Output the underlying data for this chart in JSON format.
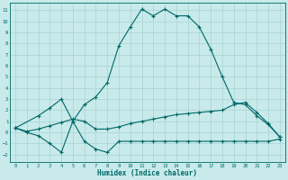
{
  "background_color": "#c8eaea",
  "grid_color": "#a8d4d4",
  "line_color": "#006868",
  "xlabel": "Humidex (Indice chaleur)",
  "xlim": [
    -0.5,
    23.5
  ],
  "ylim": [
    -2.7,
    11.7
  ],
  "xticks": [
    0,
    1,
    2,
    3,
    4,
    5,
    6,
    7,
    8,
    9,
    10,
    11,
    12,
    13,
    14,
    15,
    16,
    17,
    18,
    19,
    20,
    21,
    22,
    23
  ],
  "yticks": [
    -2,
    -1,
    0,
    1,
    2,
    3,
    4,
    5,
    6,
    7,
    8,
    9,
    10,
    11
  ],
  "curve_peak_x": [
    0,
    2,
    3,
    4,
    5,
    6,
    7,
    8,
    9,
    10,
    11,
    12,
    13,
    14,
    15,
    16,
    17,
    18,
    19,
    20,
    21,
    22,
    23
  ],
  "curve_peak_y": [
    0.4,
    1.5,
    2.2,
    3.0,
    1.0,
    2.5,
    3.2,
    4.5,
    7.8,
    9.5,
    11.1,
    10.5,
    11.1,
    10.5,
    10.5,
    9.5,
    7.5,
    5.0,
    2.7,
    2.5,
    1.5,
    0.7,
    -0.4
  ],
  "curve_mid_x": [
    0,
    1,
    2,
    3,
    4,
    5,
    6,
    7,
    8,
    9,
    10,
    11,
    12,
    13,
    14,
    15,
    16,
    17,
    18,
    19,
    20,
    21,
    22,
    23
  ],
  "curve_mid_y": [
    0.4,
    0.1,
    0.3,
    0.6,
    0.9,
    1.2,
    1.0,
    0.3,
    0.3,
    0.5,
    0.8,
    1.0,
    1.2,
    1.4,
    1.6,
    1.7,
    1.8,
    1.9,
    2.0,
    2.5,
    2.7,
    1.8,
    0.8,
    -0.4
  ],
  "curve_low_x": [
    0,
    1,
    2,
    3,
    4,
    5,
    6,
    7,
    8,
    9,
    10,
    11,
    12,
    13,
    14,
    15,
    16,
    17,
    18,
    19,
    20,
    21,
    22,
    23
  ],
  "curve_low_y": [
    0.4,
    0.0,
    -0.3,
    -1.0,
    -1.8,
    1.0,
    -0.8,
    -1.5,
    -1.8,
    -0.8,
    -0.8,
    -0.8,
    -0.8,
    -0.8,
    -0.8,
    -0.8,
    -0.8,
    -0.8,
    -0.8,
    -0.8,
    -0.8,
    -0.8,
    -0.8,
    -0.6
  ]
}
